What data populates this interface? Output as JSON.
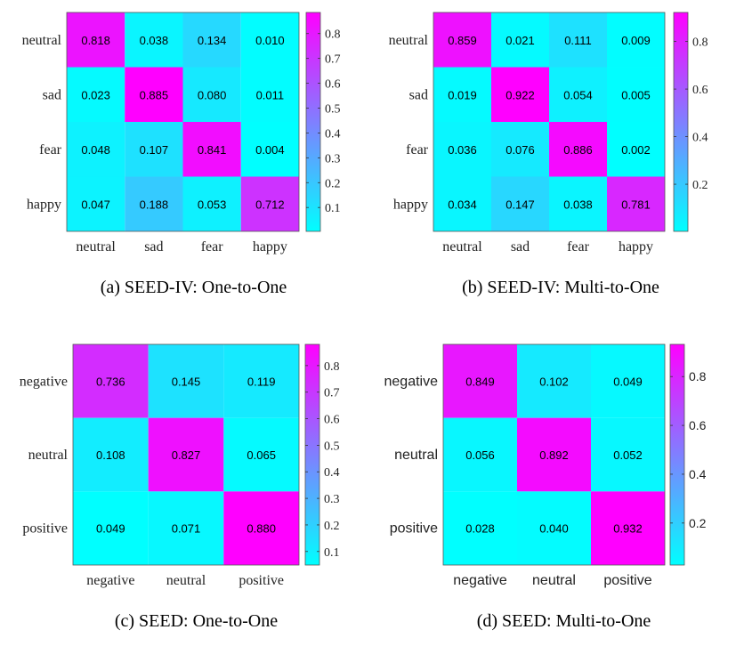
{
  "chart_data": [
    {
      "type": "heatmap",
      "caption": "(a)  SEED-IV: One-to-One",
      "categories": [
        "neutral",
        "sad",
        "fear",
        "happy"
      ],
      "matrix": [
        [
          0.818,
          0.038,
          0.134,
          0.01
        ],
        [
          0.023,
          0.885,
          0.08,
          0.011
        ],
        [
          0.048,
          0.107,
          0.841,
          0.004
        ],
        [
          0.047,
          0.188,
          0.053,
          0.712
        ]
      ],
      "colorbar_ticks": [
        "0.1",
        "0.2",
        "0.3",
        "0.4",
        "0.5",
        "0.6",
        "0.7",
        "0.8"
      ],
      "colorbar_range": [
        0.004,
        0.885
      ],
      "colormap": [
        "#00ffff",
        "#ff00ff"
      ]
    },
    {
      "type": "heatmap",
      "caption": "(b)  SEED-IV: Multi-to-One",
      "categories": [
        "neutral",
        "sad",
        "fear",
        "happy"
      ],
      "matrix": [
        [
          0.859,
          0.021,
          0.111,
          0.009
        ],
        [
          0.019,
          0.922,
          0.054,
          0.005
        ],
        [
          0.036,
          0.076,
          0.886,
          0.002
        ],
        [
          0.034,
          0.147,
          0.038,
          0.781
        ]
      ],
      "colorbar_ticks": [
        "0.2",
        "0.4",
        "0.6",
        "0.8"
      ],
      "colorbar_range": [
        0.002,
        0.922
      ],
      "colormap": [
        "#00ffff",
        "#ff00ff"
      ]
    },
    {
      "type": "heatmap",
      "caption": "(c)  SEED: One-to-One",
      "categories": [
        "negative",
        "neutral",
        "positive"
      ],
      "matrix": [
        [
          0.736,
          0.145,
          0.119
        ],
        [
          0.108,
          0.827,
          0.065
        ],
        [
          0.049,
          0.071,
          0.88
        ]
      ],
      "colorbar_ticks": [
        "0.1",
        "0.2",
        "0.3",
        "0.4",
        "0.5",
        "0.6",
        "0.7",
        "0.8"
      ],
      "colorbar_range": [
        0.049,
        0.88
      ],
      "colormap": [
        "#00ffff",
        "#ff00ff"
      ]
    },
    {
      "type": "heatmap",
      "caption": "(d)  SEED: Multi-to-One",
      "categories": [
        "negative",
        "neutral",
        "positive"
      ],
      "matrix": [
        [
          0.849,
          0.102,
          0.049
        ],
        [
          0.056,
          0.892,
          0.052
        ],
        [
          0.028,
          0.04,
          0.932
        ]
      ],
      "colorbar_ticks": [
        "0.2",
        "0.4",
        "0.6",
        "0.8"
      ],
      "colorbar_range": [
        0.028,
        0.932
      ],
      "colormap": [
        "#00ffff",
        "#ff00ff"
      ]
    }
  ]
}
